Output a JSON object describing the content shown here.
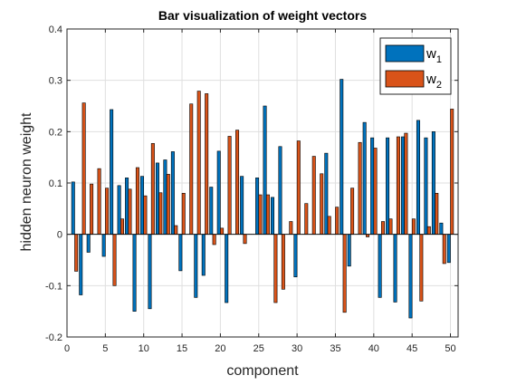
{
  "chart_data": {
    "type": "bar",
    "title": "Bar visualization of weight vectors",
    "xlabel": "component",
    "ylabel": "hidden neuron weight",
    "xlim": [
      0,
      51
    ],
    "ylim": [
      -0.2,
      0.4
    ],
    "xticks": [
      0,
      5,
      10,
      15,
      20,
      25,
      30,
      35,
      40,
      45,
      50
    ],
    "yticks": [
      -0.2,
      -0.1,
      0,
      0.1,
      0.2,
      0.3,
      0.4
    ],
    "ytick_labels": [
      "-0.2",
      "-0.1",
      "0",
      "0.1",
      "0.2",
      "0.3",
      "0.4"
    ],
    "grid": true,
    "legend_position": "top-right",
    "categories": [
      1,
      2,
      3,
      4,
      5,
      6,
      7,
      8,
      9,
      10,
      11,
      12,
      13,
      14,
      15,
      16,
      17,
      18,
      19,
      20,
      21,
      22,
      23,
      24,
      25,
      26,
      27,
      28,
      29,
      30,
      31,
      32,
      33,
      34,
      35,
      36,
      37,
      38,
      39,
      40,
      41,
      42,
      43,
      44,
      45,
      46,
      47,
      48,
      49,
      50
    ],
    "series": [
      {
        "name": "w",
        "subscript": "1",
        "color": "#0072BD",
        "values": [
          0.102,
          -0.118,
          -0.035,
          0.0,
          -0.043,
          0.243,
          0.095,
          0.11,
          -0.15,
          0.113,
          -0.145,
          0.139,
          0.145,
          0.161,
          -0.071,
          0.0,
          -0.123,
          -0.08,
          0.092,
          0.162,
          -0.133,
          0.0,
          0.113,
          0.0,
          0.11,
          0.25,
          0.072,
          0.171,
          0.0,
          -0.083,
          0.0,
          0.0,
          0.0,
          0.158,
          0.0,
          0.302,
          -0.062,
          0.0,
          0.218,
          0.188,
          -0.123,
          0.188,
          -0.132,
          0.19,
          -0.163,
          0.222,
          0.188,
          0.2,
          0.022,
          -0.055
        ]
      },
      {
        "name": "w",
        "subscript": "2",
        "color": "#D95319",
        "values": [
          -0.072,
          0.256,
          0.098,
          0.128,
          0.09,
          -0.1,
          0.03,
          0.088,
          0.13,
          0.075,
          0.177,
          0.081,
          0.117,
          0.017,
          0.08,
          0.254,
          0.279,
          0.274,
          -0.02,
          0.012,
          0.191,
          0.203,
          -0.018,
          0.0,
          0.077,
          0.077,
          -0.133,
          -0.107,
          0.025,
          0.182,
          0.06,
          0.152,
          0.118,
          0.035,
          0.053,
          -0.152,
          0.09,
          0.179,
          -0.005,
          0.168,
          0.025,
          0.03,
          0.19,
          0.197,
          0.03,
          -0.13,
          0.015,
          0.08,
          -0.057,
          0.244
        ]
      }
    ]
  }
}
